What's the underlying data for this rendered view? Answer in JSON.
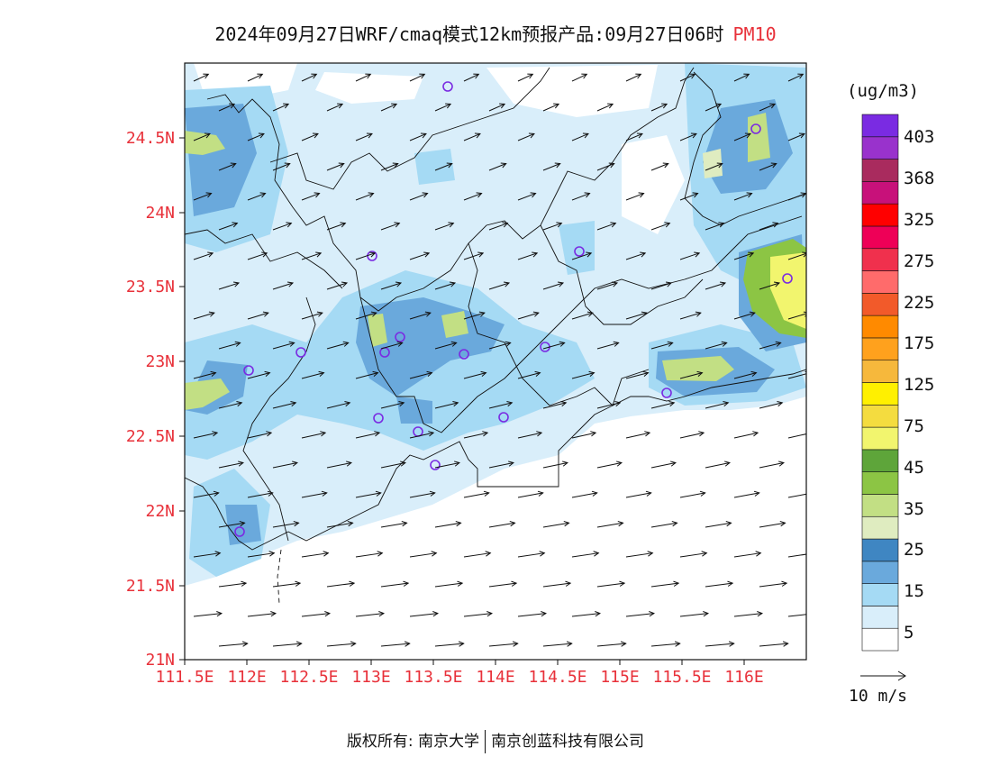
{
  "title": {
    "text": "2024年09月27日WRF/cmaq模式12km预报产品:09月27日06时",
    "variable": "PM10"
  },
  "lat_labels": [
    "24.5N",
    "24N",
    "23.5N",
    "23N",
    "22.5N",
    "22N",
    "21.5N",
    "21N"
  ],
  "lon_labels": [
    "111.5E",
    "112E",
    "112.5E",
    "113E",
    "113.5E",
    "114E",
    "114.5E",
    "115E",
    "115.5E",
    "116E"
  ],
  "colorbar": {
    "unit": "(ug/m3)",
    "labels": [
      "403",
      "368",
      "325",
      "275",
      "225",
      "175",
      "125",
      "75",
      "45",
      "35",
      "25",
      "15",
      "5"
    ],
    "colors": [
      "#ffffff",
      "#d9eefa",
      "#a5daf4",
      "#6aa9dc",
      "#3f86c2",
      "#dfecc0",
      "#c2df84",
      "#8cc544",
      "#5ea53a",
      "#f2f56e",
      "#f4dc3f",
      "#fff000",
      "#f6b83c",
      "#ffa11d",
      "#ff8a00",
      "#f25a2a",
      "#ff6b6b",
      "#f0304d",
      "#ee0057",
      "#ff0000",
      "#c8117a",
      "#a92b5e",
      "#9932cc",
      "#7a2be2"
    ]
  },
  "wind_reference": {
    "label": "10 m/s"
  },
  "footer": {
    "left": "版权所有: 南京大学",
    "right": "南京创蓝科技有限公司"
  }
}
